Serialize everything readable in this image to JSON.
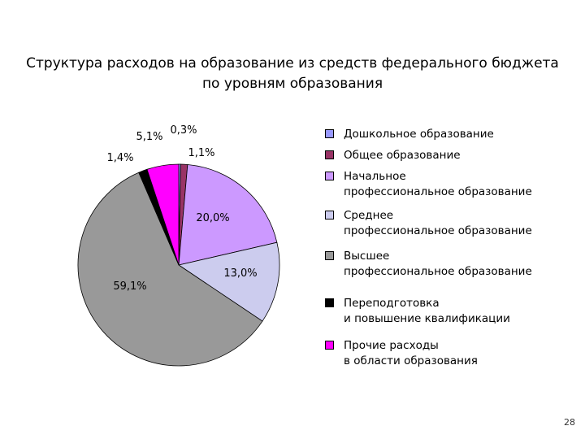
{
  "title_line1": "Структура расходов на образование из средств федерального бюджета",
  "title_line2": "по уровням образования",
  "page_number": "28",
  "chart_data": {
    "type": "pie",
    "title": "Структура расходов на образование из средств федерального бюджета по уровням образования",
    "slices": [
      {
        "label": "Дошкольное образование",
        "value": 0.3,
        "value_label": "0,3%",
        "color": "#9999FF"
      },
      {
        "label": "Общее образование",
        "value": 1.1,
        "value_label": "1,1%",
        "color": "#993366"
      },
      {
        "label": "Начальное профессиональное образование",
        "value": 20.0,
        "value_label": "20,0%",
        "color": "#CC99FF"
      },
      {
        "label": "Среднее профессиональное образование",
        "value": 13.0,
        "value_label": "13,0%",
        "color": "#CCCCEE"
      },
      {
        "label": "Высшее профессиональное образование",
        "value": 59.1,
        "value_label": "59,1%",
        "color": "#999999"
      },
      {
        "label": "Переподготовка и повышение квалификации",
        "value": 1.4,
        "value_label": "1,4%",
        "color": "#000000"
      },
      {
        "label": "Прочие расходы в области образования",
        "value": 5.1,
        "value_label": "5,1%",
        "color": "#FF00FF"
      }
    ],
    "legend": {
      "position": "right",
      "entries": [
        "Дошкольное образование",
        "Общее образование",
        "Начальное\nпрофессиональное образование",
        "Среднее\nпрофессиональное образование",
        "Высшее\nпрофессиональное образование",
        "Переподготовка\nи повышение квалификации",
        "Прочие расходы\nв области образования"
      ]
    }
  }
}
